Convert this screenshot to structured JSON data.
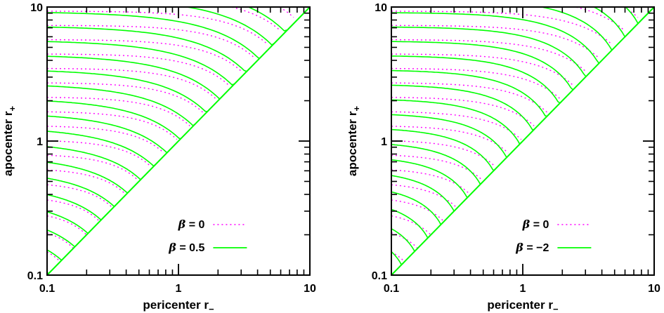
{
  "chart_data": [
    {
      "type": "line",
      "panel": "left",
      "xlabel": "pericenter r",
      "xlabel_sub": "−",
      "ylabel": "apocenter r",
      "ylabel_sub": "+",
      "x_scale": "log",
      "y_scale": "log",
      "xlim": [
        0.1,
        10
      ],
      "ylim": [
        0.1,
        10
      ],
      "x_ticks": [
        "0.1",
        "1",
        "10"
      ],
      "y_ticks": [
        "0.1",
        "1",
        "10"
      ],
      "legend_position": "bottom-right",
      "series": [
        {
          "name": "β = 0",
          "beta_symbol": "β",
          "beta_value": "0",
          "color": "#ff00ff",
          "style": "dotted",
          "beta": 0
        },
        {
          "name": "β = 0.5",
          "beta_symbol": "β",
          "beta_value": "0.5",
          "color": "#00ff00",
          "style": "solid",
          "beta": 0.5
        }
      ],
      "diagonal": "r+ = r−",
      "contour_levels_log10_energy": [
        -1.3,
        -1.2,
        -1.1,
        -1.0,
        -0.9,
        -0.8,
        -0.7,
        -0.6,
        -0.5,
        -0.4,
        -0.3,
        -0.2,
        -0.1,
        0.0,
        0.1,
        0.2,
        0.3,
        0.4,
        0.5,
        0.6,
        0.7,
        0.8,
        0.9
      ]
    },
    {
      "type": "line",
      "panel": "right",
      "xlabel": "pericenter r",
      "xlabel_sub": "−",
      "ylabel": "apocenter r",
      "ylabel_sub": "+",
      "x_scale": "log",
      "y_scale": "log",
      "xlim": [
        0.1,
        10
      ],
      "ylim": [
        0.1,
        10
      ],
      "x_ticks": [
        "0.1",
        "1",
        "10"
      ],
      "y_ticks": [
        "0.1",
        "1",
        "10"
      ],
      "legend_position": "bottom-right",
      "series": [
        {
          "name": "β = 0",
          "beta_symbol": "β",
          "beta_value": "0",
          "color": "#ff00ff",
          "style": "dotted",
          "beta": 0
        },
        {
          "name": "β = −2",
          "beta_symbol": "β",
          "beta_value": "−2",
          "color": "#00ff00",
          "style": "solid",
          "beta": -2
        }
      ],
      "diagonal": "r+ = r−",
      "contour_levels_log10_energy": [
        -1.5,
        -1.4,
        -1.3,
        -1.2,
        -1.1,
        -1.0,
        -0.9,
        -0.8,
        -0.7,
        -0.6,
        -0.5,
        -0.4,
        -0.3,
        -0.2,
        -0.1,
        0.0,
        0.1,
        0.2,
        0.3,
        0.4,
        0.5,
        0.6,
        0.7,
        0.8,
        0.9
      ]
    }
  ]
}
